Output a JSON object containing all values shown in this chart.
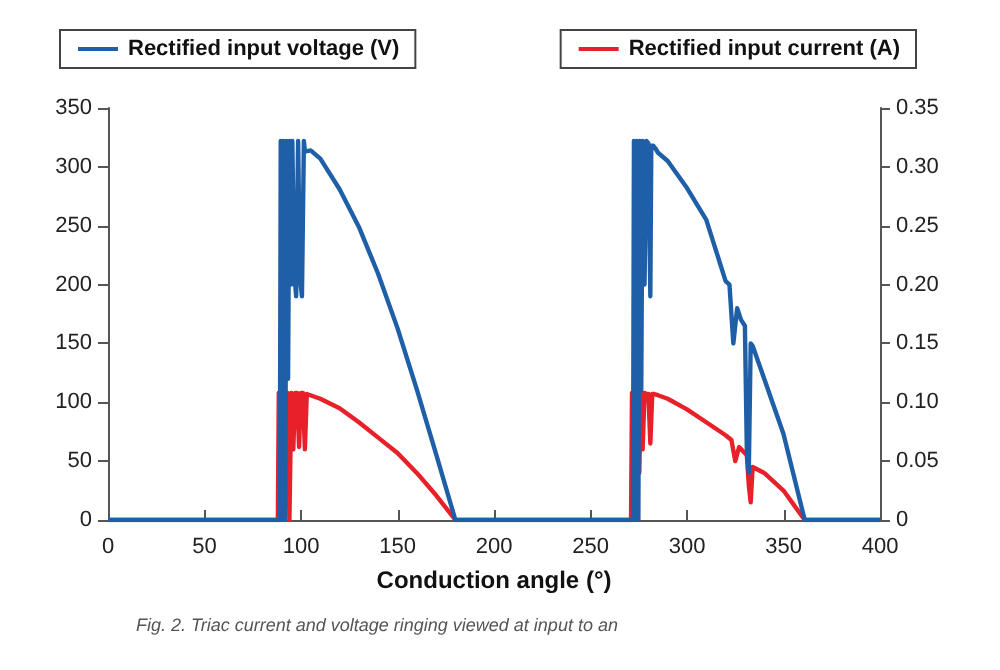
{
  "chart_data": {
    "type": "line",
    "xlabel": "Conduction angle (°)",
    "xlim": [
      0,
      400
    ],
    "xticks": [
      0,
      50,
      100,
      150,
      200,
      250,
      300,
      350,
      400
    ],
    "ylim": [
      0,
      350
    ],
    "yticks": [
      0,
      50,
      100,
      150,
      200,
      250,
      300,
      350
    ],
    "y2lim": [
      0,
      0.35
    ],
    "y2ticks": [
      0,
      {
        "value": 0.05,
        "label": "0.05"
      },
      {
        "value": 0.1,
        "label": "0.10"
      },
      {
        "value": 0.15,
        "label": "0.15"
      },
      {
        "value": 0.2,
        "label": "0.20"
      },
      {
        "value": 0.25,
        "label": "0.25"
      },
      {
        "value": 0.3,
        "label": "0.30"
      },
      {
        "value": 0.35,
        "label": "0.35"
      }
    ],
    "grid": false,
    "legend": "top",
    "marker": "none",
    "line_style": "solid",
    "annotations": [
      "Fig. 2. Triac current and voltage ringing viewed at input to an"
    ],
    "series": [
      {
        "name": "Rectified input voltage (V)",
        "color": "#1f5fa8",
        "x": [
          0,
          89,
          89.5,
          90.3,
          91,
          91.8,
          92.5,
          93.3,
          94,
          95,
          95.5,
          96.5,
          97.5,
          98.5,
          99.5,
          100.5,
          101.5,
          102,
          105,
          110,
          120,
          130,
          140,
          150,
          160,
          170,
          180,
          272,
          272.5,
          273.3,
          274,
          274.8,
          275.5,
          276.3,
          277,
          278,
          279,
          280,
          281,
          281.5,
          282.5,
          283.5,
          285,
          290,
          300,
          310,
          320,
          322,
          324,
          326,
          328,
          330,
          331,
          332,
          333,
          334,
          340,
          350,
          361,
          400
        ],
        "values": [
          0,
          0,
          322,
          0,
          322,
          0,
          322,
          120,
          322,
          200,
          322,
          210,
          190,
          322,
          205,
          190,
          322,
          313,
          314,
          307,
          281,
          249,
          209,
          163,
          111,
          56,
          0,
          0,
          322,
          0,
          322,
          0,
          322,
          110,
          322,
          200,
          322,
          320,
          190,
          318,
          318,
          316,
          312,
          305,
          282,
          255,
          203,
          200,
          150,
          180,
          170,
          165,
          60,
          40,
          150,
          148,
          120,
          73,
          0,
          0
        ]
      },
      {
        "name": "Rectified input current (A)",
        "color": "#e8202a",
        "axis": "y2",
        "x": [
          0,
          88,
          88.5,
          89.3,
          90,
          90.8,
          91.5,
          92.3,
          93,
          94,
          95,
          96,
          97,
          98,
          99,
          100,
          101,
          102,
          103,
          110,
          120,
          130,
          140,
          150,
          160,
          170,
          180,
          271,
          271.5,
          272.3,
          273,
          273.8,
          274.5,
          275.3,
          276,
          277,
          278,
          279,
          280,
          281,
          282,
          283,
          285,
          290,
          300,
          310,
          320,
          323,
          325,
          327,
          331,
          332,
          333,
          334,
          340,
          350,
          361,
          400
        ],
        "values": [
          0,
          0,
          0.108,
          0,
          0.108,
          0,
          0.108,
          0.03,
          0.108,
          0,
          0.108,
          0.06,
          0.108,
          0.108,
          0.062,
          0.108,
          0.108,
          0.06,
          0.107,
          0.103,
          0.095,
          0.083,
          0.07,
          0.057,
          0.04,
          0.021,
          0,
          0,
          0.108,
          0,
          0.108,
          0,
          0.108,
          0.04,
          0.108,
          0.06,
          0.108,
          0.107,
          0.107,
          0.065,
          0.107,
          0.107,
          0.106,
          0.103,
          0.094,
          0.083,
          0.072,
          0.068,
          0.05,
          0.062,
          0.055,
          0.03,
          0.015,
          0.045,
          0.04,
          0.025,
          0,
          0
        ]
      }
    ]
  }
}
